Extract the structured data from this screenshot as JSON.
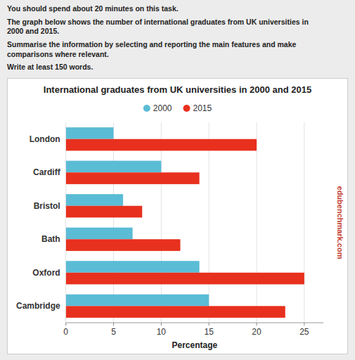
{
  "text": [
    "You should spend about 20 minutes on this task.",
    "The graph below shows the number of international graduates from UK universities in\n2000 and 2015.",
    "Summarise the information by selecting and reporting the main features and make\ncomparisons where relevant.",
    "Write at least 150 words."
  ],
  "chart_data": {
    "type": "bar",
    "orientation": "horizontal",
    "title": "International graduates from UK universities in 2000 and 2015",
    "xlabel": "Percentage",
    "categories": [
      "Cambridge",
      "Oxford",
      "Bath",
      "Bristol",
      "Cardiff",
      "London"
    ],
    "series": [
      {
        "name": "2000",
        "color": "#5bbcd6",
        "values": [
          15,
          14,
          7,
          6,
          10,
          5
        ]
      },
      {
        "name": "2015",
        "color": "#e8301e",
        "values": [
          23,
          25,
          12,
          8,
          14,
          20
        ]
      }
    ],
    "xlim": [
      0,
      27
    ],
    "xticks": [
      0,
      5,
      10,
      15,
      20,
      25
    ],
    "grid": true,
    "legend": "top",
    "annotations": [
      "edubenchmark.com"
    ]
  }
}
